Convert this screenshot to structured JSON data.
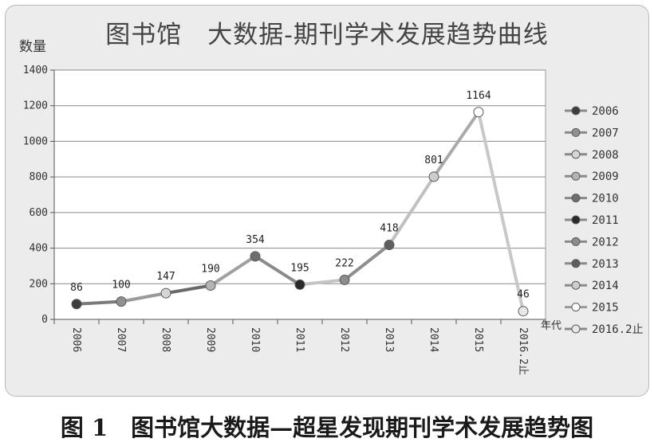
{
  "chart_data": {
    "type": "line",
    "title": "图书馆　大数据-期刊学术发展趋势曲线",
    "ylabel": "数量",
    "xlabel": "年代",
    "categories": [
      "2006",
      "2007",
      "2008",
      "2009",
      "2010",
      "2011",
      "2012",
      "2013",
      "2014",
      "2015",
      "2016.2止"
    ],
    "values": [
      86,
      100,
      147,
      190,
      354,
      195,
      222,
      418,
      801,
      1164,
      46
    ],
    "ylim": [
      0,
      1400
    ],
    "yticks": [
      0,
      200,
      400,
      600,
      800,
      1000,
      1200,
      1400
    ],
    "grid": true,
    "legend_position": "right",
    "legend": [
      "2006",
      "2007",
      "2008",
      "2009",
      "2010",
      "2011",
      "2012",
      "2013",
      "2014",
      "2015",
      "2016.2止"
    ],
    "point_colors": [
      "#3d3d3d",
      "#909090",
      "#d6d6d6",
      "#b4b4b4",
      "#6e6e6e",
      "#2a2a2a",
      "#8c8c8c",
      "#5e5e5e",
      "#cdcdcd",
      "#ffffff",
      "#e8e8e8"
    ],
    "line_colors": [
      "#7a7a7a",
      "#9a9a9a",
      "#6a6a6a",
      "#a0a0a0",
      "#8a8a8a",
      "#c4c4c4",
      "#8e8e8e",
      "#c0c0c0",
      "#aaaaaa",
      "#c8c8c8"
    ]
  },
  "caption": "图 1　图书馆大数据—超星发现期刊学术发展趋势图"
}
